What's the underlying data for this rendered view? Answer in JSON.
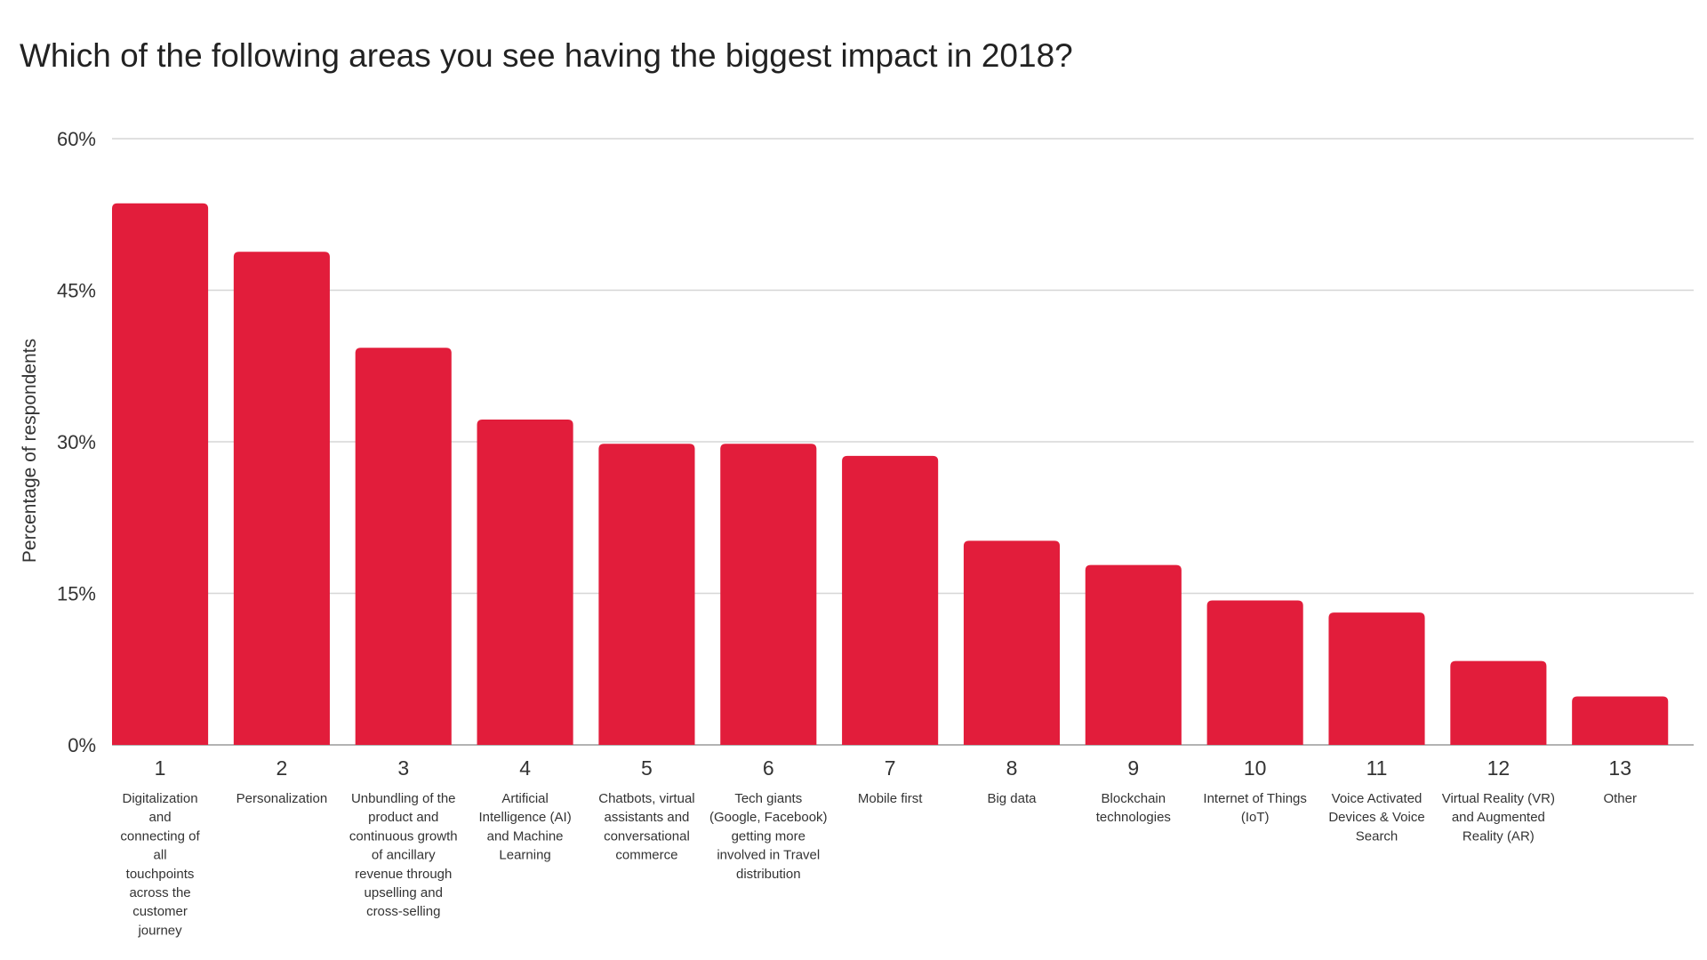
{
  "chart_data": {
    "type": "bar",
    "title": "Which of the following areas you see having the biggest impact in 2018?",
    "xlabel": "",
    "ylabel": "Percentage of respondents",
    "ylim": [
      0,
      60
    ],
    "yticks": [
      "0%",
      "15%",
      "30%",
      "45%",
      "60%"
    ],
    "ytick_values": [
      0,
      15,
      30,
      45,
      60
    ],
    "grid": true,
    "bar_color": "#E21D3B",
    "categories": [
      {
        "num": "1",
        "lines": [
          "Digitalization",
          "and",
          "connecting of",
          "all",
          "touchpoints",
          "across the",
          "customer",
          "journey"
        ]
      },
      {
        "num": "2",
        "lines": [
          "Personalization"
        ]
      },
      {
        "num": "3",
        "lines": [
          "Unbundling of the",
          "product and",
          "continuous growth",
          "of ancillary",
          "revenue through",
          "upselling and",
          "cross-selling"
        ]
      },
      {
        "num": "4",
        "lines": [
          "Artificial",
          "Intelligence (AI)",
          "and Machine",
          "Learning"
        ]
      },
      {
        "num": "5",
        "lines": [
          "Chatbots, virtual",
          "assistants and",
          "conversational",
          "commerce"
        ]
      },
      {
        "num": "6",
        "lines": [
          "Tech giants",
          "(Google, Facebook)",
          "getting more",
          "involved in Travel",
          "distribution"
        ]
      },
      {
        "num": "7",
        "lines": [
          "Mobile first"
        ]
      },
      {
        "num": "8",
        "lines": [
          "Big data"
        ]
      },
      {
        "num": "9",
        "lines": [
          "Blockchain",
          "technologies"
        ]
      },
      {
        "num": "10",
        "lines": [
          "Internet of Things",
          "(IoT)"
        ]
      },
      {
        "num": "11",
        "lines": [
          "Voice Activated",
          "Devices & Voice",
          "Search"
        ]
      },
      {
        "num": "12",
        "lines": [
          "Virtual Reality (VR)",
          "and Augmented",
          "Reality (AR)"
        ]
      },
      {
        "num": "13",
        "lines": [
          "Other"
        ]
      }
    ],
    "values": [
      53.6,
      48.8,
      39.3,
      32.2,
      29.8,
      29.8,
      28.6,
      20.2,
      17.8,
      14.3,
      13.1,
      8.3,
      4.8
    ]
  }
}
